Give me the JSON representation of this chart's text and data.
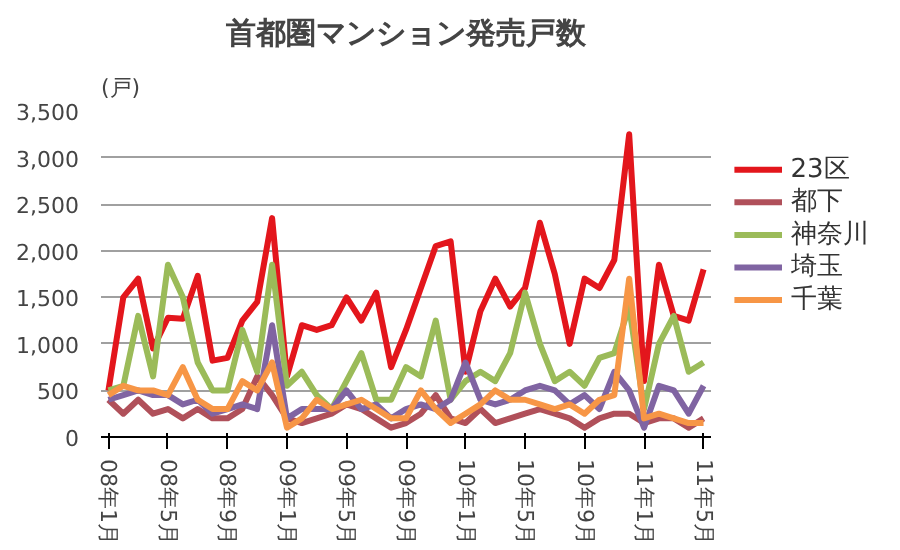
{
  "chart_data": {
    "type": "line",
    "title": "首都圏マンション発売戸数",
    "ylabel": "(戸)",
    "categories": [
      "08年1月",
      null,
      null,
      null,
      "08年5月",
      null,
      null,
      null,
      "08年9月",
      null,
      null,
      null,
      "09年1月",
      null,
      null,
      null,
      "09年5月",
      null,
      null,
      null,
      "09年9月",
      null,
      null,
      null,
      "10年1月",
      null,
      null,
      null,
      "10年5月",
      null,
      null,
      null,
      "10年9月",
      null,
      null,
      null,
      "11年1月",
      null,
      null,
      null,
      "11年5月"
    ],
    "series": [
      {
        "name": "23区",
        "color": "#e3161c",
        "values": [
          500,
          1500,
          1700,
          950,
          1280,
          1270,
          1730,
          820,
          850,
          1250,
          1450,
          2350,
          650,
          1200,
          1150,
          1200,
          1500,
          1250,
          1550,
          750,
          1150,
          1600,
          2050,
          2100,
          700,
          1350,
          1700,
          1400,
          1600,
          2300,
          1750,
          1000,
          1700,
          1600,
          1900,
          3250,
          600,
          1850,
          1300,
          1250,
          1800
        ]
      },
      {
        "name": "都下",
        "color": "#b0505a",
        "values": [
          400,
          250,
          400,
          250,
          300,
          200,
          300,
          200,
          200,
          300,
          650,
          450,
          200,
          150,
          200,
          250,
          350,
          300,
          200,
          100,
          150,
          250,
          450,
          200,
          150,
          300,
          150,
          200,
          250,
          300,
          250,
          200,
          100,
          200,
          250,
          250,
          150,
          200,
          200,
          100,
          200
        ]
      },
      {
        "name": "神奈川",
        "color": "#9bbb59",
        "values": [
          500,
          550,
          1300,
          650,
          1850,
          1500,
          800,
          500,
          500,
          1150,
          700,
          1850,
          550,
          700,
          450,
          300,
          600,
          900,
          400,
          400,
          750,
          650,
          1250,
          400,
          600,
          700,
          600,
          900,
          1550,
          1000,
          600,
          700,
          550,
          850,
          900,
          1400,
          300,
          1000,
          1300,
          700,
          800
        ]
      },
      {
        "name": "埼玉",
        "color": "#8064a2",
        "values": [
          400,
          450,
          500,
          450,
          450,
          350,
          400,
          250,
          300,
          350,
          300,
          1200,
          200,
          300,
          300,
          300,
          500,
          300,
          350,
          200,
          300,
          350,
          300,
          400,
          800,
          400,
          350,
          400,
          500,
          550,
          500,
          350,
          450,
          300,
          700,
          500,
          100,
          550,
          500,
          250,
          550
        ]
      },
      {
        "name": "千葉",
        "color": "#f79646",
        "values": [
          450,
          550,
          500,
          500,
          450,
          750,
          400,
          300,
          300,
          600,
          500,
          800,
          100,
          200,
          400,
          300,
          350,
          400,
          300,
          200,
          200,
          500,
          300,
          150,
          250,
          350,
          500,
          400,
          400,
          350,
          300,
          350,
          250,
          400,
          450,
          1700,
          200,
          250,
          200,
          150,
          150
        ]
      }
    ],
    "ylim": [
      0,
      3500
    ],
    "yticks": [
      {
        "value": 0,
        "label": "0"
      },
      {
        "value": 500,
        "label": "500"
      },
      {
        "value": 1000,
        "label": "1,000"
      },
      {
        "value": 1500,
        "label": "1,500"
      },
      {
        "value": 2000,
        "label": "2,000"
      },
      {
        "value": 2500,
        "label": "2,500"
      },
      {
        "value": 3000,
        "label": "3,000"
      },
      {
        "value": 3500,
        "label": "3,500"
      }
    ],
    "grid": "y",
    "legend": "right",
    "marker": "none",
    "line_style": "solid"
  }
}
